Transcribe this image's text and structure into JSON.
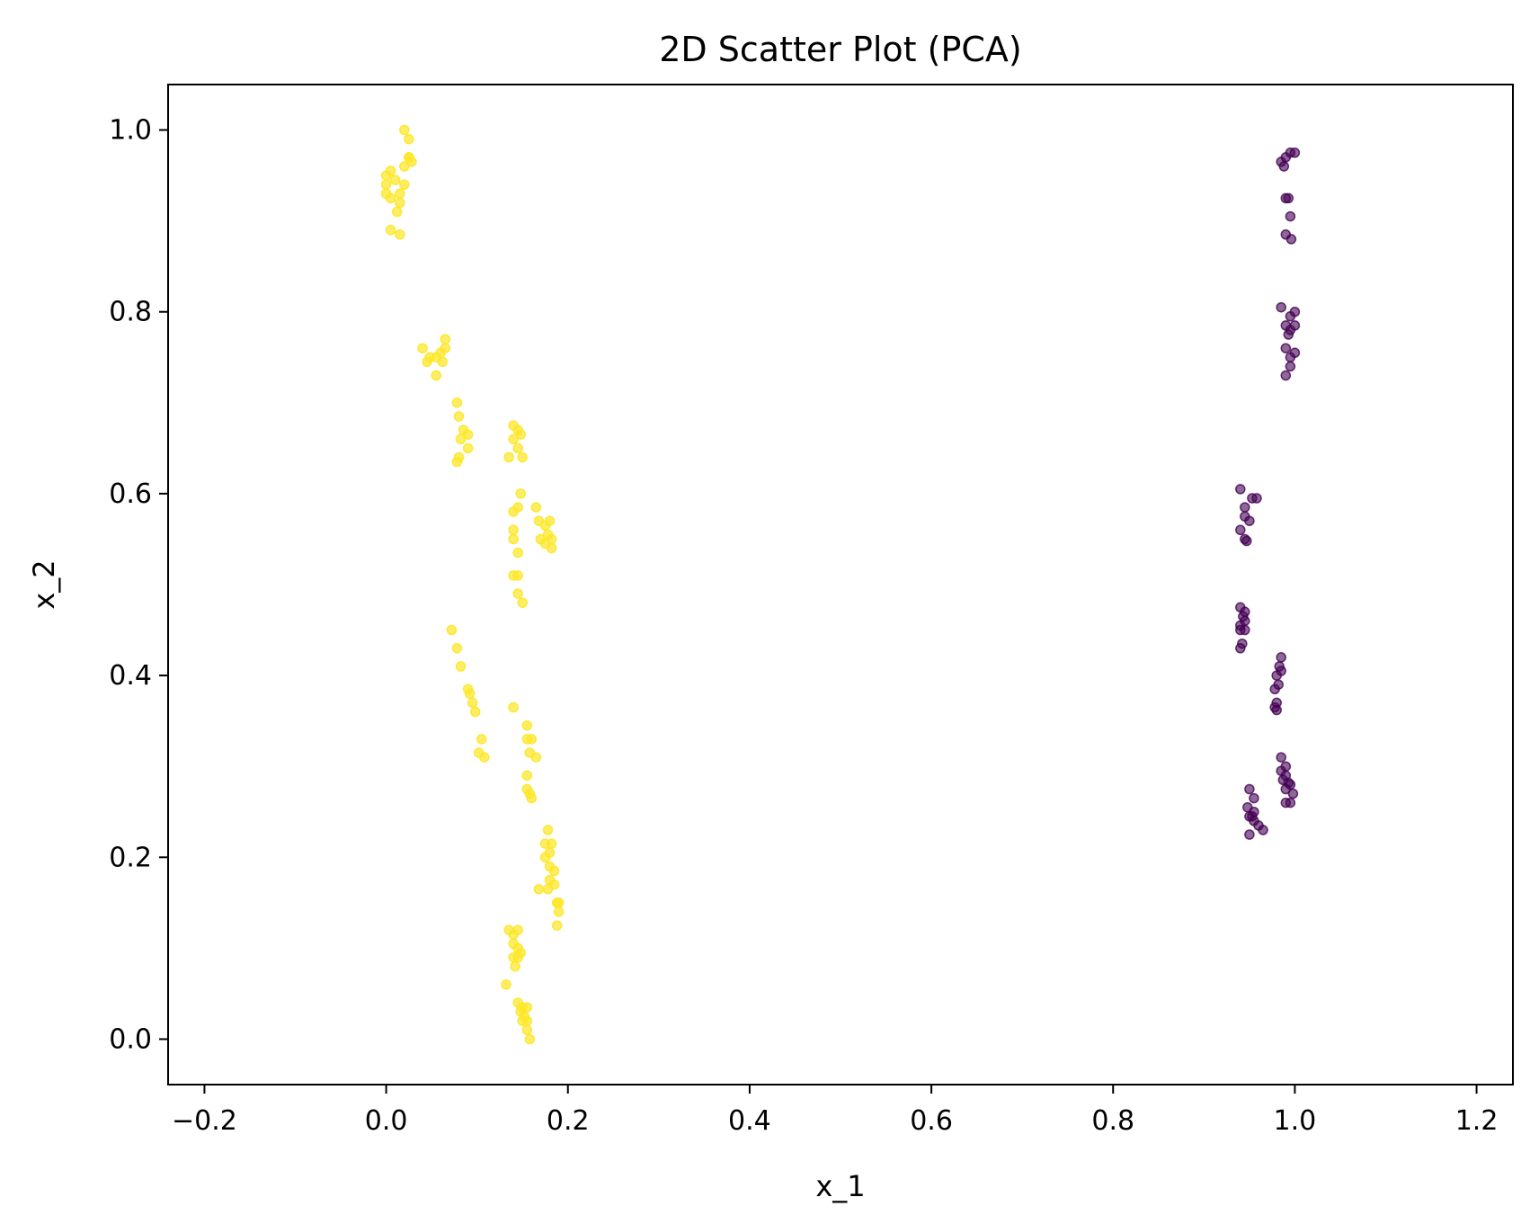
{
  "chart_data": {
    "type": "scatter",
    "title": "2D Scatter Plot (PCA)",
    "xlabel": "x_1",
    "ylabel": "x_2",
    "xlim": [
      -0.24,
      1.24
    ],
    "ylim": [
      -0.05,
      1.05
    ],
    "xticks": [
      -0.2,
      0.0,
      0.2,
      0.4,
      0.6,
      0.8,
      1.0,
      1.2
    ],
    "xtick_labels": [
      "−0.2",
      "0.0",
      "0.2",
      "0.4",
      "0.6",
      "0.8",
      "1.0",
      "1.2"
    ],
    "yticks": [
      0.0,
      0.2,
      0.4,
      0.6,
      0.8,
      1.0
    ],
    "ytick_labels": [
      "0.0",
      "0.2",
      "0.4",
      "0.6",
      "0.8",
      "1.0"
    ],
    "grid": false,
    "legend": "none",
    "series": [
      {
        "color": "#fde725",
        "opacity": 0.7,
        "points": [
          [
            0.02,
            1.0
          ],
          [
            0.025,
            0.99
          ],
          [
            0.025,
            0.97
          ],
          [
            0.02,
            0.96
          ],
          [
            0.028,
            0.965
          ],
          [
            0.0,
            0.95
          ],
          [
            0.005,
            0.955
          ],
          [
            0.0,
            0.94
          ],
          [
            0.01,
            0.945
          ],
          [
            0.015,
            0.93
          ],
          [
            0.0,
            0.93
          ],
          [
            0.005,
            0.925
          ],
          [
            0.015,
            0.92
          ],
          [
            0.02,
            0.94
          ],
          [
            0.012,
            0.91
          ],
          [
            0.005,
            0.89
          ],
          [
            0.015,
            0.885
          ],
          [
            0.025,
            0.97
          ],
          [
            0.04,
            0.76
          ],
          [
            0.048,
            0.75
          ],
          [
            0.055,
            0.75
          ],
          [
            0.06,
            0.755
          ],
          [
            0.065,
            0.76
          ],
          [
            0.065,
            0.77
          ],
          [
            0.062,
            0.745
          ],
          [
            0.055,
            0.73
          ],
          [
            0.045,
            0.745
          ],
          [
            0.078,
            0.7
          ],
          [
            0.08,
            0.685
          ],
          [
            0.085,
            0.67
          ],
          [
            0.082,
            0.66
          ],
          [
            0.09,
            0.665
          ],
          [
            0.09,
            0.65
          ],
          [
            0.08,
            0.64
          ],
          [
            0.078,
            0.635
          ],
          [
            0.14,
            0.675
          ],
          [
            0.145,
            0.67
          ],
          [
            0.148,
            0.665
          ],
          [
            0.14,
            0.66
          ],
          [
            0.145,
            0.65
          ],
          [
            0.135,
            0.64
          ],
          [
            0.15,
            0.64
          ],
          [
            0.148,
            0.6
          ],
          [
            0.145,
            0.585
          ],
          [
            0.14,
            0.58
          ],
          [
            0.14,
            0.56
          ],
          [
            0.14,
            0.55
          ],
          [
            0.145,
            0.535
          ],
          [
            0.14,
            0.51
          ],
          [
            0.145,
            0.51
          ],
          [
            0.145,
            0.49
          ],
          [
            0.15,
            0.48
          ],
          [
            0.165,
            0.585
          ],
          [
            0.168,
            0.57
          ],
          [
            0.175,
            0.565
          ],
          [
            0.18,
            0.57
          ],
          [
            0.178,
            0.555
          ],
          [
            0.182,
            0.55
          ],
          [
            0.175,
            0.545
          ],
          [
            0.182,
            0.54
          ],
          [
            0.17,
            0.55
          ],
          [
            0.072,
            0.45
          ],
          [
            0.078,
            0.43
          ],
          [
            0.082,
            0.41
          ],
          [
            0.09,
            0.385
          ],
          [
            0.092,
            0.38
          ],
          [
            0.095,
            0.37
          ],
          [
            0.098,
            0.36
          ],
          [
            0.105,
            0.33
          ],
          [
            0.102,
            0.315
          ],
          [
            0.108,
            0.31
          ],
          [
            0.14,
            0.365
          ],
          [
            0.155,
            0.345
          ],
          [
            0.155,
            0.33
          ],
          [
            0.16,
            0.33
          ],
          [
            0.158,
            0.315
          ],
          [
            0.165,
            0.31
          ],
          [
            0.155,
            0.29
          ],
          [
            0.155,
            0.275
          ],
          [
            0.158,
            0.27
          ],
          [
            0.16,
            0.265
          ],
          [
            0.178,
            0.23
          ],
          [
            0.175,
            0.215
          ],
          [
            0.182,
            0.215
          ],
          [
            0.18,
            0.205
          ],
          [
            0.175,
            0.2
          ],
          [
            0.18,
            0.19
          ],
          [
            0.185,
            0.185
          ],
          [
            0.18,
            0.175
          ],
          [
            0.185,
            0.17
          ],
          [
            0.178,
            0.165
          ],
          [
            0.168,
            0.165
          ],
          [
            0.188,
            0.15
          ],
          [
            0.19,
            0.15
          ],
          [
            0.19,
            0.14
          ],
          [
            0.188,
            0.125
          ],
          [
            0.135,
            0.12
          ],
          [
            0.14,
            0.115
          ],
          [
            0.145,
            0.12
          ],
          [
            0.14,
            0.105
          ],
          [
            0.145,
            0.1
          ],
          [
            0.148,
            0.095
          ],
          [
            0.14,
            0.09
          ],
          [
            0.145,
            0.09
          ],
          [
            0.142,
            0.08
          ],
          [
            0.132,
            0.06
          ],
          [
            0.145,
            0.04
          ],
          [
            0.15,
            0.035
          ],
          [
            0.155,
            0.035
          ],
          [
            0.148,
            0.03
          ],
          [
            0.152,
            0.025
          ],
          [
            0.155,
            0.02
          ],
          [
            0.15,
            0.02
          ],
          [
            0.155,
            0.01
          ],
          [
            0.158,
            0.0
          ]
        ]
      },
      {
        "color": "#440154",
        "opacity": 0.6,
        "points": [
          [
            0.985,
            0.965
          ],
          [
            0.99,
            0.97
          ],
          [
            0.995,
            0.975
          ],
          [
            1.0,
            0.975
          ],
          [
            0.988,
            0.96
          ],
          [
            0.99,
            0.925
          ],
          [
            0.993,
            0.925
          ],
          [
            0.995,
            0.905
          ],
          [
            0.99,
            0.885
          ],
          [
            0.996,
            0.88
          ],
          [
            0.985,
            0.805
          ],
          [
            0.995,
            0.795
          ],
          [
            1.0,
            0.8
          ],
          [
            0.99,
            0.785
          ],
          [
            0.995,
            0.78
          ],
          [
            1.0,
            0.785
          ],
          [
            0.993,
            0.775
          ],
          [
            0.99,
            0.76
          ],
          [
            0.995,
            0.75
          ],
          [
            1.0,
            0.755
          ],
          [
            0.995,
            0.74
          ],
          [
            0.99,
            0.73
          ],
          [
            0.94,
            0.605
          ],
          [
            0.953,
            0.595
          ],
          [
            0.958,
            0.595
          ],
          [
            0.945,
            0.585
          ],
          [
            0.945,
            0.575
          ],
          [
            0.95,
            0.57
          ],
          [
            0.94,
            0.56
          ],
          [
            0.945,
            0.55
          ],
          [
            0.947,
            0.548
          ],
          [
            0.94,
            0.475
          ],
          [
            0.945,
            0.47
          ],
          [
            0.943,
            0.465
          ],
          [
            0.945,
            0.46
          ],
          [
            0.94,
            0.455
          ],
          [
            0.945,
            0.45
          ],
          [
            0.94,
            0.45
          ],
          [
            0.942,
            0.435
          ],
          [
            0.94,
            0.43
          ],
          [
            0.985,
            0.42
          ],
          [
            0.983,
            0.41
          ],
          [
            0.985,
            0.405
          ],
          [
            0.98,
            0.4
          ],
          [
            0.982,
            0.39
          ],
          [
            0.978,
            0.385
          ],
          [
            0.98,
            0.37
          ],
          [
            0.978,
            0.365
          ],
          [
            0.98,
            0.362
          ],
          [
            0.985,
            0.31
          ],
          [
            0.99,
            0.3
          ],
          [
            0.985,
            0.295
          ],
          [
            0.99,
            0.29
          ],
          [
            0.987,
            0.285
          ],
          [
            0.993,
            0.282
          ],
          [
            0.995,
            0.28
          ],
          [
            0.99,
            0.275
          ],
          [
            0.998,
            0.27
          ],
          [
            0.99,
            0.26
          ],
          [
            0.995,
            0.26
          ],
          [
            0.95,
            0.275
          ],
          [
            0.955,
            0.265
          ],
          [
            0.948,
            0.255
          ],
          [
            0.955,
            0.25
          ],
          [
            0.95,
            0.245
          ],
          [
            0.953,
            0.245
          ],
          [
            0.955,
            0.24
          ],
          [
            0.96,
            0.235
          ],
          [
            0.965,
            0.23
          ],
          [
            0.95,
            0.225
          ]
        ]
      }
    ]
  }
}
